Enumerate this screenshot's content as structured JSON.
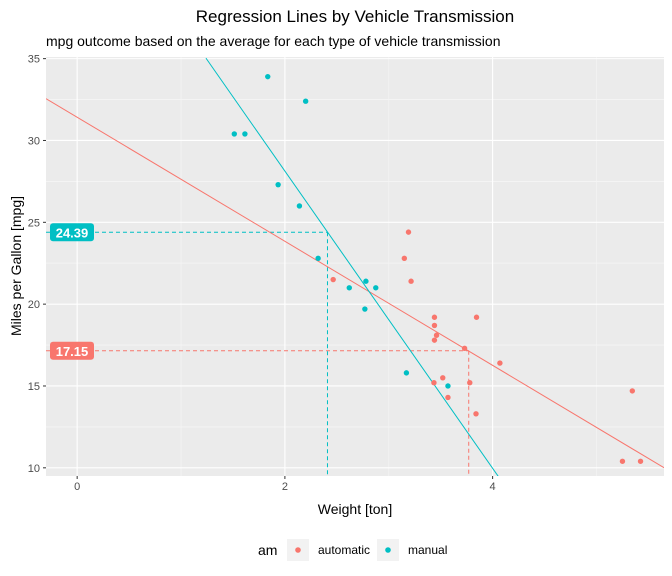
{
  "chart_data": {
    "type": "scatter",
    "title": "Regression Lines by Vehicle Transmission",
    "subtitle": "mpg outcome based on the average for each type of vehicle transmission",
    "xlabel": "Weight [ton]",
    "ylabel": "Miles per Gallon [mpg]",
    "xlim": [
      -0.3,
      5.65
    ],
    "ylim": [
      9.5,
      35.1
    ],
    "x_ticks": [
      0,
      2,
      4
    ],
    "y_ticks": [
      10,
      15,
      20,
      25,
      30,
      35
    ],
    "grid": true,
    "legend": {
      "title": "am",
      "position": "bottom"
    },
    "series": [
      {
        "name": "automatic",
        "color": "#F8766D",
        "points": [
          {
            "x": 3.215,
            "y": 21.4
          },
          {
            "x": 3.44,
            "y": 18.7
          },
          {
            "x": 3.46,
            "y": 18.1
          },
          {
            "x": 3.57,
            "y": 14.3
          },
          {
            "x": 3.19,
            "y": 24.4
          },
          {
            "x": 3.15,
            "y": 22.8
          },
          {
            "x": 3.44,
            "y": 19.2
          },
          {
            "x": 3.44,
            "y": 17.8
          },
          {
            "x": 4.07,
            "y": 16.4
          },
          {
            "x": 3.73,
            "y": 17.3
          },
          {
            "x": 3.78,
            "y": 15.2
          },
          {
            "x": 5.25,
            "y": 10.4
          },
          {
            "x": 5.424,
            "y": 10.4
          },
          {
            "x": 5.345,
            "y": 14.7
          },
          {
            "x": 3.52,
            "y": 15.5
          },
          {
            "x": 3.435,
            "y": 15.2
          },
          {
            "x": 3.84,
            "y": 13.3
          },
          {
            "x": 3.845,
            "y": 19.2
          },
          {
            "x": 2.465,
            "y": 21.5
          }
        ],
        "regression": {
          "intercept": 31.42,
          "slope": -3.79,
          "x_range": [
            -0.3,
            5.65
          ]
        },
        "mean": {
          "x": 3.77,
          "y": 17.15,
          "label": "17.15"
        }
      },
      {
        "name": "manual",
        "color": "#00BFC4",
        "points": [
          {
            "x": 2.62,
            "y": 21.0
          },
          {
            "x": 2.875,
            "y": 21.0
          },
          {
            "x": 2.32,
            "y": 22.8
          },
          {
            "x": 2.2,
            "y": 32.4
          },
          {
            "x": 1.615,
            "y": 30.4
          },
          {
            "x": 1.835,
            "y": 33.9
          },
          {
            "x": 1.935,
            "y": 27.3
          },
          {
            "x": 2.14,
            "y": 26.0
          },
          {
            "x": 1.513,
            "y": 30.4
          },
          {
            "x": 3.17,
            "y": 15.8
          },
          {
            "x": 2.77,
            "y": 19.7
          },
          {
            "x": 2.78,
            "y": 21.4
          },
          {
            "x": 3.57,
            "y": 15.0
          }
        ],
        "regression": {
          "intercept": 46.29,
          "slope": -9.08,
          "x_range": [
            1.24,
            4.07
          ]
        },
        "mean": {
          "x": 2.41,
          "y": 24.39,
          "label": "24.39"
        }
      }
    ]
  }
}
